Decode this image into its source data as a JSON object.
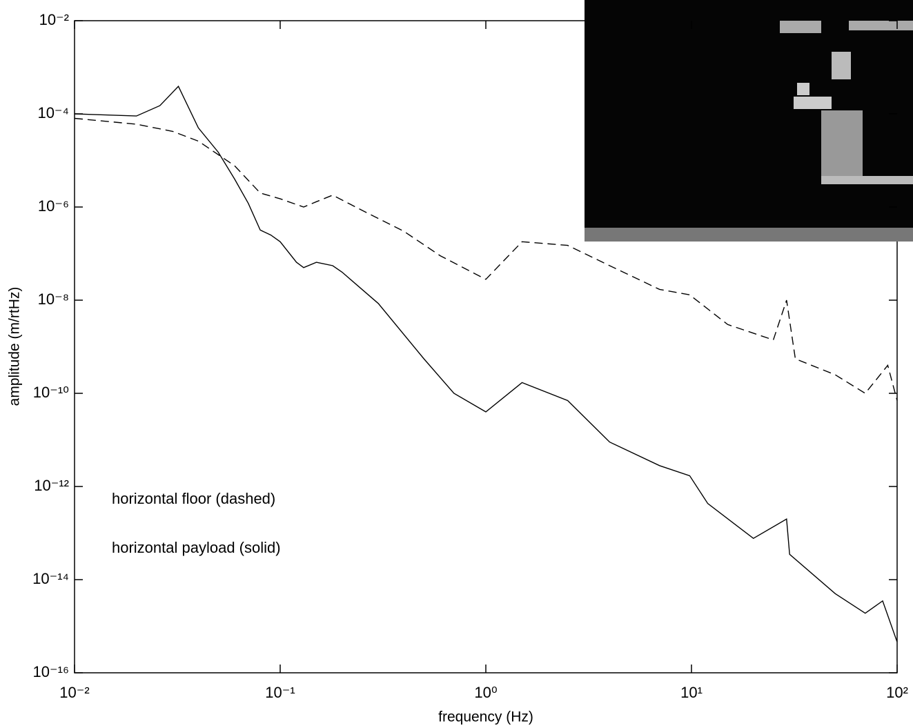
{
  "chart_data": {
    "type": "line",
    "xlabel": "frequency (Hz)",
    "ylabel": "amplitude (m/rtHz)",
    "xscale": "log",
    "yscale": "log",
    "xlim": [
      0.01,
      100
    ],
    "ylim": [
      1e-16,
      0.01
    ],
    "xticks": [
      {
        "value": 0.01,
        "label": "10⁻²"
      },
      {
        "value": 0.1,
        "label": "10⁻¹"
      },
      {
        "value": 1,
        "label": "10⁰"
      },
      {
        "value": 10,
        "label": "10¹"
      },
      {
        "value": 100,
        "label": "10²"
      }
    ],
    "yticks": [
      {
        "value": 1e-16,
        "label": "10⁻¹⁶"
      },
      {
        "value": 1e-14,
        "label": "10⁻¹⁴"
      },
      {
        "value": 1e-12,
        "label": "10⁻¹²"
      },
      {
        "value": 1e-10,
        "label": "10⁻¹⁰"
      },
      {
        "value": 1e-08,
        "label": "10⁻⁸"
      },
      {
        "value": 1e-06,
        "label": "10⁻⁶"
      },
      {
        "value": 0.0001,
        "label": "10⁻⁴"
      },
      {
        "value": 0.01,
        "label": "10⁻²"
      }
    ],
    "annotations": [
      "horizontal floor (dashed)",
      "horizontal payload (solid)"
    ],
    "series": [
      {
        "color": "#000000",
        "style": "dashed",
        "x": [
          0.01,
          0.02,
          0.03,
          0.04,
          0.06,
          0.08,
          0.1,
          0.13,
          0.15,
          0.18,
          0.25,
          0.4,
          0.6,
          1.0,
          1.5,
          2.5,
          4,
          7,
          9.8,
          15,
          25,
          29,
          32,
          50,
          70,
          90,
          100
        ],
        "values": [
          8e-05,
          6e-05,
          4.2e-05,
          2.6e-05,
          7.7e-06,
          2e-06,
          1.5e-06,
          1e-06,
          1.3e-06,
          1.8e-06,
          8.5e-07,
          3e-07,
          9e-08,
          2.8e-08,
          1.8e-07,
          1.5e-07,
          5.5e-08,
          1.7e-08,
          1.3e-08,
          3e-09,
          1.4e-09,
          1e-08,
          5.5e-10,
          2.5e-10,
          1e-10,
          4e-10,
          7e-11
        ]
      },
      {
        "color": "#000000",
        "style": "solid",
        "x": [
          0.01,
          0.02,
          0.026,
          0.032,
          0.04,
          0.05,
          0.06,
          0.07,
          0.08,
          0.09,
          0.1,
          0.12,
          0.13,
          0.15,
          0.18,
          0.2,
          0.3,
          0.5,
          0.7,
          1.0,
          1.5,
          2.5,
          4,
          7,
          9.8,
          12,
          20,
          29,
          30,
          50,
          70,
          85,
          100
        ],
        "values": [
          0.0001,
          9e-05,
          0.00015,
          0.00039,
          5e-05,
          1.5e-05,
          4e-06,
          1.2e-06,
          3.2e-07,
          2.5e-07,
          1.8e-07,
          6.5e-08,
          5e-08,
          6.5e-08,
          5.5e-08,
          4e-08,
          8.5e-09,
          5.5e-10,
          1e-10,
          4e-11,
          1.7e-10,
          7e-11,
          9e-12,
          2.8e-12,
          1.7e-12,
          4.3e-13,
          7.7e-14,
          2e-13,
          3.5e-14,
          5e-15,
          1.9e-15,
          3.5e-15,
          4.6e-16
        ]
      }
    ]
  }
}
